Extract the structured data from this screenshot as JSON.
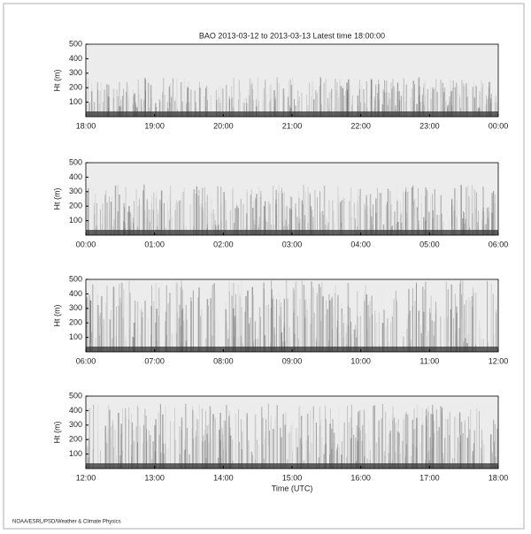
{
  "chart_data": [
    {
      "type": "echogram",
      "title": "BAO 2013-03-12 to 2013-03-13 Latest time 18:00:00",
      "ylabel": "Ht (m)",
      "ylim": [
        0,
        500
      ],
      "yticks": [
        100,
        200,
        300,
        400,
        500
      ],
      "xticks": [
        "18:00",
        "19:00",
        "20:00",
        "21:00",
        "22:00",
        "23:00",
        "00:00"
      ]
    },
    {
      "type": "echogram",
      "ylabel": "Ht (m)",
      "ylim": [
        0,
        500
      ],
      "yticks": [
        100,
        200,
        300,
        400,
        500
      ],
      "xticks": [
        "00:00",
        "01:00",
        "02:00",
        "03:00",
        "04:00",
        "05:00",
        "06:00"
      ]
    },
    {
      "type": "echogram",
      "ylabel": "Ht (m)",
      "ylim": [
        0,
        500
      ],
      "yticks": [
        100,
        200,
        300,
        400,
        500
      ],
      "xticks": [
        "06:00",
        "07:00",
        "08:00",
        "09:00",
        "10:00",
        "11:00",
        "12:00"
      ]
    },
    {
      "type": "echogram",
      "ylabel": "Ht (m)",
      "xlabel": "Time (UTC)",
      "ylim": [
        0,
        500
      ],
      "yticks": [
        100,
        200,
        300,
        400,
        500
      ],
      "xticks": [
        "12:00",
        "13:00",
        "14:00",
        "15:00",
        "16:00",
        "17:00",
        "18:00"
      ]
    }
  ],
  "footer": "NOAA/ESRL/PSD/Weather & Climate Physics"
}
